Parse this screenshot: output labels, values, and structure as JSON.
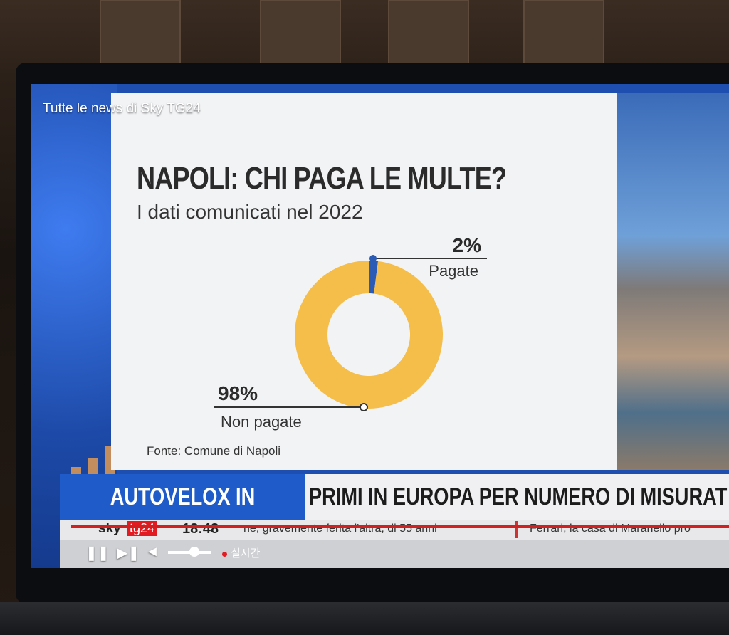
{
  "overlay": {
    "title": "Tutte le news di Sky TG24"
  },
  "slide": {
    "title": "NAPOLI: CHI PAGA LE MULTE?",
    "subtitle": "I dati comunicati nel 2022",
    "source": "Fonte: Comune di Napoli"
  },
  "chart_data": {
    "type": "pie",
    "categories": [
      "Pagate",
      "Non pagate"
    ],
    "values": [
      2,
      98
    ],
    "labels": [
      "2%",
      "98%"
    ],
    "colors": [
      "#2c5bb5",
      "#f5be4a"
    ],
    "title": "NAPOLI: CHI PAGA LE MULTE?",
    "subtitle": "I dati comunicati nel 2022"
  },
  "lower_third": {
    "left": "AUTOVELOX IN ITALIA",
    "right": "PRIMI IN EUROPA PER NUMERO DI MISURAT"
  },
  "ticker": {
    "logo": "sky",
    "badge": "tg24",
    "time": "18:48",
    "news1": "ne, gravemente ferita l'altra, di 55 anni",
    "news2": "Ferrari, la casa di Maranello pro"
  },
  "player": {
    "live_label": "실시간",
    "play_icon": "pause-icon",
    "next_icon": "skip-next-icon",
    "volume_icon": "volume-icon"
  }
}
